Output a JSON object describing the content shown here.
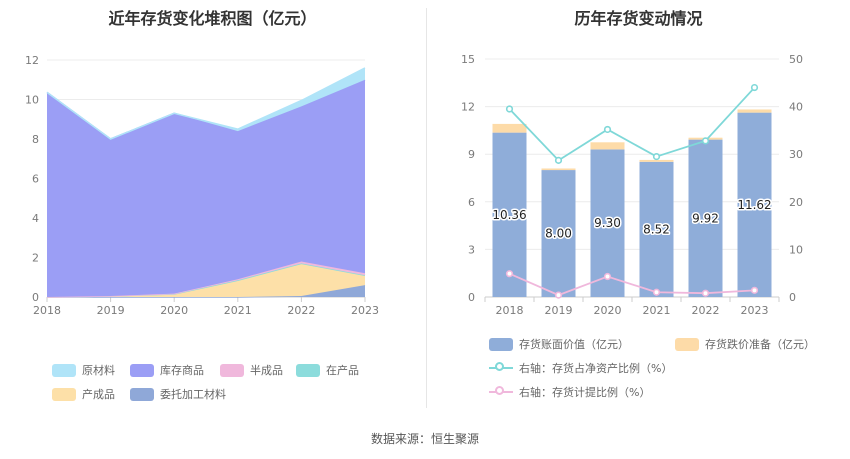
{
  "source_text": "数据来源：恒生聚源",
  "chart_data": [
    {
      "type": "area",
      "stacked": true,
      "title": "近年存货变化堆积图（亿元）",
      "x": [
        "2018",
        "2019",
        "2020",
        "2021",
        "2022",
        "2023"
      ],
      "ylim": [
        0,
        12
      ],
      "yticks": [
        0,
        2,
        4,
        6,
        8,
        10,
        12
      ],
      "grid": true,
      "legend_position": "bottom",
      "series": [
        {
          "name": "委托加工材料",
          "color": "#8fa8d8",
          "values": [
            0,
            0,
            0,
            0,
            0.05,
            0.6
          ]
        },
        {
          "name": "产成品",
          "color": "#fde0a8",
          "values": [
            0,
            0.05,
            0.15,
            0.85,
            1.65,
            0.5
          ]
        },
        {
          "name": "在产品",
          "color": "#8cdcdc",
          "values": [
            0,
            0,
            0,
            0,
            0,
            0
          ]
        },
        {
          "name": "半成品",
          "color": "#f0b8dc",
          "values": [
            0,
            0,
            0.02,
            0.05,
            0.1,
            0.1
          ]
        },
        {
          "name": "库存商品",
          "color": "#9b9ef5",
          "values": [
            10.36,
            7.95,
            9.13,
            7.5,
            7.85,
            9.8
          ]
        },
        {
          "name": "原材料",
          "color": "#b0e4f8",
          "values": [
            0,
            0,
            0,
            0.1,
            0.3,
            0.6
          ]
        }
      ],
      "legend_order": [
        "原材料",
        "库存商品",
        "半成品",
        "在产品",
        "产成品",
        "委托加工材料"
      ]
    },
    {
      "type": "bar",
      "title": "历年存货变动情况",
      "categories": [
        "2018",
        "2019",
        "2020",
        "2021",
        "2022",
        "2023"
      ],
      "ylim": [
        0,
        15
      ],
      "yticks": [
        0,
        3,
        6,
        9,
        12,
        15
      ],
      "y2lim": [
        0,
        50
      ],
      "y2ticks": [
        0,
        10,
        20,
        30,
        40,
        50
      ],
      "grid": true,
      "legend_position": "bottom",
      "series": [
        {
          "name": "存货账面价值（亿元）",
          "kind": "bar",
          "axis": "left",
          "color": "#8fadd9",
          "values": [
            10.36,
            8.0,
            9.3,
            8.52,
            9.92,
            11.62
          ],
          "labels": [
            "10.36",
            "8.00",
            "9.30",
            "8.52",
            "9.92",
            "11.62"
          ]
        },
        {
          "name": "存货跌价准备（亿元）",
          "kind": "bar-stack",
          "axis": "left",
          "color": "#fddba8",
          "values": [
            0.55,
            0.1,
            0.45,
            0.12,
            0.12,
            0.2
          ]
        },
        {
          "name": "右轴：存货占净资产比例（%）",
          "kind": "line",
          "axis": "right",
          "color": "#7fd8d8",
          "values": [
            39.5,
            28.7,
            35.2,
            29.5,
            32.8,
            44.0
          ]
        },
        {
          "name": "右轴：存货计提比例（%）",
          "kind": "line",
          "axis": "right",
          "color": "#f0b8dc",
          "values": [
            4.9,
            0.4,
            4.3,
            1.0,
            0.8,
            1.4
          ]
        }
      ]
    }
  ]
}
